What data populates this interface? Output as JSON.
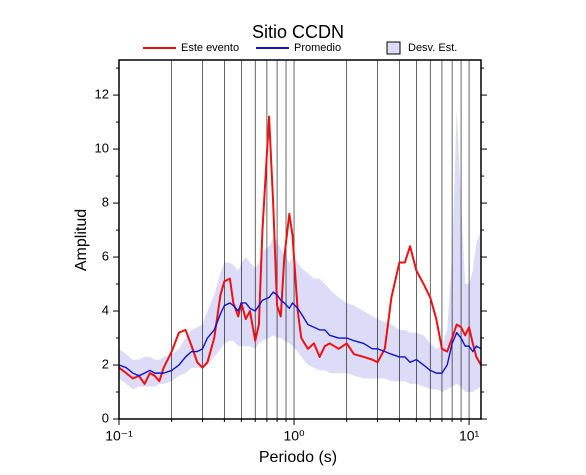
{
  "chart_data": {
    "type": "line",
    "title": "Sitio CCDN",
    "xlabel": "Periodo (s)",
    "ylabel": "Amplitud",
    "xscale": "log",
    "grid": true,
    "xlim": [
      0.1,
      11.7
    ],
    "ylim": [
      0,
      13.3
    ],
    "xticks": [
      {
        "value": 0.1,
        "label": "10⁻¹"
      },
      {
        "value": 1,
        "label": "10⁰"
      },
      {
        "value": 10,
        "label": "10¹"
      }
    ],
    "xminor": [
      0.2,
      0.3,
      0.4,
      0.5,
      0.6,
      0.7,
      0.8,
      0.9,
      2,
      3,
      4,
      5,
      6,
      7,
      8,
      9
    ],
    "yticks": [
      0,
      2,
      4,
      6,
      8,
      10,
      12
    ],
    "yminor": [
      1,
      3,
      5,
      7,
      9,
      11,
      13
    ],
    "x": [
      0.1,
      0.11,
      0.12,
      0.13,
      0.14,
      0.15,
      0.16,
      0.17,
      0.18,
      0.2,
      0.22,
      0.24,
      0.26,
      0.28,
      0.3,
      0.32,
      0.35,
      0.38,
      0.4,
      0.43,
      0.45,
      0.48,
      0.5,
      0.53,
      0.56,
      0.6,
      0.63,
      0.66,
      0.72,
      0.76,
      0.8,
      0.84,
      0.88,
      0.94,
      0.98,
      1.05,
      1.1,
      1.2,
      1.3,
      1.4,
      1.5,
      1.6,
      1.8,
      2.0,
      2.2,
      2.5,
      2.8,
      3.0,
      3.3,
      3.6,
      4.0,
      4.3,
      4.6,
      5.0,
      5.5,
      6.0,
      6.5,
      7.0,
      7.5,
      8.0,
      8.5,
      9.0,
      9.5,
      10,
      10.5,
      11,
      11.7
    ],
    "series": [
      {
        "name": "Este evento",
        "color": "#ee1111",
        "values": [
          1.9,
          1.7,
          1.5,
          1.6,
          1.3,
          1.7,
          1.6,
          1.4,
          1.9,
          2.5,
          3.2,
          3.3,
          2.7,
          2.1,
          1.9,
          2.1,
          3.0,
          4.6,
          5.1,
          5.2,
          4.3,
          3.8,
          4.3,
          3.7,
          4.0,
          2.9,
          3.5,
          7.0,
          11.2,
          8,
          4.2,
          3.8,
          6.0,
          7.6,
          6.8,
          4.0,
          3.0,
          2.6,
          2.8,
          2.3,
          2.7,
          2.8,
          2.6,
          2.8,
          2.4,
          2.3,
          2.2,
          2.1,
          2.6,
          4.5,
          5.8,
          5.8,
          6.4,
          5.5,
          5.0,
          4.5,
          3.7,
          2.6,
          2.5,
          3.0,
          3.5,
          3.4,
          3.1,
          3.4,
          2.8,
          2.3,
          2.0
        ]
      },
      {
        "name": "Promedio",
        "color": "#1111cc",
        "values": [
          2.0,
          1.9,
          1.7,
          1.6,
          1.7,
          1.8,
          1.7,
          1.7,
          1.7,
          1.8,
          2.0,
          2.3,
          2.5,
          2.5,
          2.6,
          3.0,
          3.3,
          3.9,
          4.2,
          4.3,
          4.2,
          4.0,
          4.3,
          4.3,
          4.1,
          4.0,
          4.2,
          4.4,
          4.5,
          4.7,
          4.6,
          4.4,
          4.3,
          4.1,
          4.3,
          4.1,
          3.9,
          3.5,
          3.4,
          3.3,
          3.3,
          3.1,
          3.0,
          3.0,
          2.9,
          2.8,
          2.6,
          2.6,
          2.5,
          2.4,
          2.3,
          2.3,
          2.1,
          2.2,
          2.0,
          1.8,
          1.7,
          1.7,
          2.0,
          2.8,
          3.2,
          3.0,
          2.7,
          2.7,
          2.5,
          2.7,
          2.6
        ]
      },
      {
        "name": "Desv. Est.",
        "color": "#dcdcf8",
        "lower": [
          1.5,
          1.3,
          1.1,
          1.2,
          1.2,
          1.2,
          1.2,
          1.3,
          1.3,
          1.4,
          1.6,
          1.7,
          1.9,
          1.9,
          1.9,
          2.0,
          2.3,
          2.6,
          2.8,
          2.9,
          2.9,
          2.7,
          2.7,
          2.7,
          2.7,
          2.6,
          2.8,
          2.9,
          3.0,
          3.1,
          3.0,
          3.0,
          2.9,
          2.8,
          2.7,
          2.5,
          2.3,
          2.0,
          1.9,
          1.8,
          1.8,
          1.7,
          1.7,
          1.7,
          1.6,
          1.5,
          1.5,
          1.5,
          1.5,
          1.4,
          1.4,
          1.4,
          1.3,
          1.3,
          1.2,
          1.1,
          1.1,
          1.0,
          1.1,
          1.2,
          1.3,
          1.2,
          1.0,
          1.0,
          1.0,
          1.1,
          1.2
        ],
        "upper": [
          2.6,
          2.4,
          2.2,
          2.2,
          2.3,
          2.3,
          2.2,
          2.2,
          2.3,
          2.4,
          2.6,
          3.0,
          3.3,
          3.4,
          3.5,
          4.0,
          4.6,
          5.4,
          5.8,
          5.8,
          5.7,
          5.5,
          5.8,
          6.0,
          5.8,
          5.6,
          5.8,
          6.2,
          6.4,
          6.7,
          6.6,
          6.3,
          6.1,
          5.8,
          6.0,
          5.8,
          5.6,
          5.4,
          5.2,
          5.2,
          5.0,
          4.8,
          4.5,
          4.3,
          4.2,
          4.0,
          3.8,
          3.7,
          3.6,
          3.5,
          3.3,
          3.3,
          3.2,
          3.2,
          3.1,
          2.8,
          2.6,
          2.7,
          3.3,
          6.0,
          11.5,
          8.0,
          5.0,
          5.0,
          5.5,
          6.5,
          7.0
        ]
      }
    ]
  }
}
